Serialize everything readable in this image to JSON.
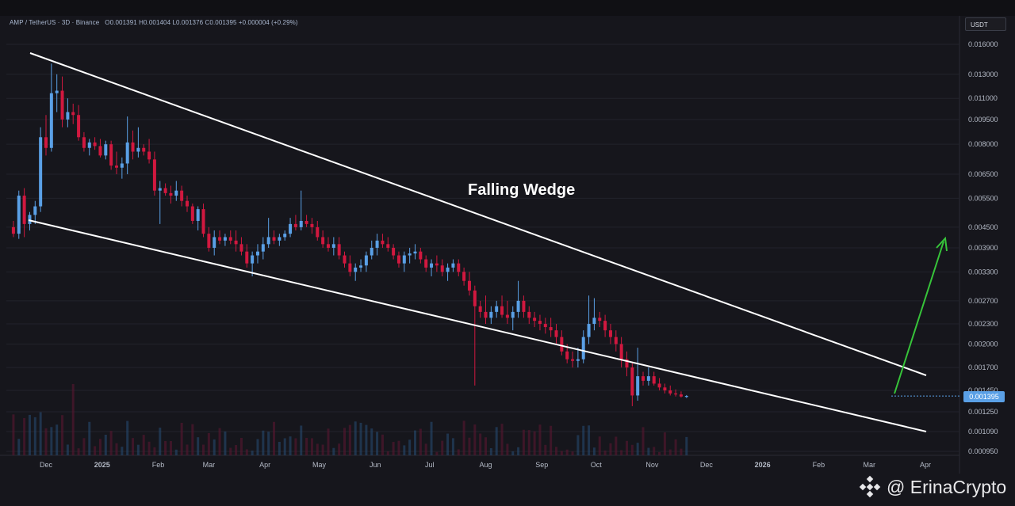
{
  "header": {
    "symbol_line": "AMP / TetherUS · 3D · Binance",
    "ohlc_line": "O0.001391  H0.001404  L0.001376  C0.001395  +0.000004 (+0.29%)"
  },
  "currency_label": "USDT",
  "current_price_label": "0.001395",
  "pattern_label": "Falling Wedge",
  "watermark": "@ ErinaCrypto",
  "colors": {
    "background": "#16161c",
    "up_candle": "#5aa0e6",
    "down_candle": "#d1183f",
    "trendline": "#ffffff",
    "breakout_arrow": "#37c43a",
    "grid": "#22232b",
    "axis_text": "#b4bac6"
  },
  "chart_data": {
    "type": "candlestick",
    "title": "AMP / TetherUS · 3D · Binance",
    "y_scale": "log",
    "y_ticks": [
      "0.016000",
      "0.013000",
      "0.011000",
      "0.009500",
      "0.008000",
      "0.006500",
      "0.005500",
      "0.004500",
      "0.003900",
      "0.003300",
      "0.002700",
      "0.002300",
      "0.002000",
      "0.001700",
      "0.001450",
      "0.001250",
      "0.001090",
      "0.000950"
    ],
    "x_ticks": [
      "Dec",
      "2025",
      "Feb",
      "Mar",
      "Apr",
      "May",
      "Jun",
      "Jul",
      "Aug",
      "Sep",
      "Oct",
      "Nov",
      "Dec",
      "2026",
      "Feb",
      "Mar",
      "Apr"
    ],
    "x_tick_dates": [
      "2024-12-01",
      "2025-01-01",
      "2025-02-01",
      "2025-03-01",
      "2025-04-01",
      "2025-05-01",
      "2025-06-01",
      "2025-07-01",
      "2025-08-01",
      "2025-09-01",
      "2025-10-01",
      "2025-11-01",
      "2025-12-01",
      "2026-01-01",
      "2026-02-01",
      "2026-03-01",
      "2026-04-01"
    ],
    "candle_interval_days": 3,
    "first_candle_date": "2024-11-13",
    "candles": [
      [
        0.0045,
        0.0047,
        0.0042,
        0.0043
      ],
      [
        0.0043,
        0.0058,
        0.00415,
        0.0056
      ],
      [
        0.0056,
        0.0059,
        0.0042,
        0.0046
      ],
      [
        0.0046,
        0.005,
        0.0044,
        0.0049
      ],
      [
        0.0049,
        0.0054,
        0.0046,
        0.0052
      ],
      [
        0.0052,
        0.009,
        0.005,
        0.0084
      ],
      [
        0.0084,
        0.0098,
        0.0074,
        0.0078
      ],
      [
        0.0078,
        0.014,
        0.0076,
        0.0114
      ],
      [
        0.0114,
        0.013,
        0.01,
        0.0116
      ],
      [
        0.0116,
        0.0128,
        0.009,
        0.0095
      ],
      [
        0.0095,
        0.011,
        0.009,
        0.01
      ],
      [
        0.01,
        0.0106,
        0.0092,
        0.0098
      ],
      [
        0.0098,
        0.0105,
        0.0082,
        0.0084
      ],
      [
        0.0084,
        0.0087,
        0.0076,
        0.0078
      ],
      [
        0.0078,
        0.0083,
        0.0074,
        0.0081
      ],
      [
        0.0081,
        0.0084,
        0.0077,
        0.0079
      ],
      [
        0.0079,
        0.0083,
        0.0073,
        0.0074
      ],
      [
        0.0074,
        0.0082,
        0.0072,
        0.008
      ],
      [
        0.008,
        0.0082,
        0.0067,
        0.0069
      ],
      [
        0.0069,
        0.0076,
        0.0065,
        0.0068
      ],
      [
        0.0068,
        0.0073,
        0.0063,
        0.007
      ],
      [
        0.007,
        0.0097,
        0.0065,
        0.0081
      ],
      [
        0.0081,
        0.0088,
        0.0072,
        0.0076
      ],
      [
        0.0076,
        0.009,
        0.0073,
        0.0078
      ],
      [
        0.0078,
        0.008,
        0.0074,
        0.0076
      ],
      [
        0.0076,
        0.0083,
        0.007,
        0.0072
      ],
      [
        0.0072,
        0.0076,
        0.0056,
        0.0058
      ],
      [
        0.0058,
        0.0062,
        0.0046,
        0.0059
      ],
      [
        0.0059,
        0.0061,
        0.0056,
        0.0057
      ],
      [
        0.0057,
        0.006,
        0.0053,
        0.0056
      ],
      [
        0.0056,
        0.0062,
        0.0054,
        0.0058
      ],
      [
        0.0058,
        0.006,
        0.0052,
        0.0054
      ],
      [
        0.0054,
        0.0056,
        0.005,
        0.0052
      ],
      [
        0.0052,
        0.0053,
        0.0046,
        0.0047
      ],
      [
        0.0047,
        0.0052,
        0.0044,
        0.0051
      ],
      [
        0.0051,
        0.0053,
        0.0042,
        0.0043
      ],
      [
        0.0043,
        0.0045,
        0.0038,
        0.0039
      ],
      [
        0.0039,
        0.0044,
        0.0037,
        0.0042
      ],
      [
        0.0042,
        0.0044,
        0.004,
        0.0041
      ],
      [
        0.0041,
        0.0043,
        0.00395,
        0.0042
      ],
      [
        0.0042,
        0.0044,
        0.004,
        0.0041
      ],
      [
        0.0041,
        0.0044,
        0.0038,
        0.004
      ],
      [
        0.004,
        0.0042,
        0.0037,
        0.0038
      ],
      [
        0.0038,
        0.004,
        0.0034,
        0.0035
      ],
      [
        0.0035,
        0.0038,
        0.0032,
        0.0037
      ],
      [
        0.0037,
        0.004,
        0.0035,
        0.0038
      ],
      [
        0.0038,
        0.0042,
        0.0036,
        0.004
      ],
      [
        0.004,
        0.0048,
        0.0039,
        0.0042
      ],
      [
        0.0042,
        0.0044,
        0.004,
        0.0041
      ],
      [
        0.0041,
        0.0043,
        0.00395,
        0.0042
      ],
      [
        0.0042,
        0.0044,
        0.0041,
        0.0043
      ],
      [
        0.0043,
        0.0048,
        0.0042,
        0.0046
      ],
      [
        0.0046,
        0.0049,
        0.0044,
        0.0045
      ],
      [
        0.0045,
        0.0058,
        0.0044,
        0.0047
      ],
      [
        0.0047,
        0.0049,
        0.0045,
        0.0046
      ],
      [
        0.0046,
        0.0048,
        0.0043,
        0.0045
      ],
      [
        0.0045,
        0.0047,
        0.0041,
        0.0042
      ],
      [
        0.0042,
        0.0044,
        0.0039,
        0.004
      ],
      [
        0.004,
        0.0042,
        0.0038,
        0.0039
      ],
      [
        0.0039,
        0.0042,
        0.0037,
        0.004
      ],
      [
        0.004,
        0.0042,
        0.0036,
        0.0037
      ],
      [
        0.0037,
        0.0038,
        0.0034,
        0.0035
      ],
      [
        0.0035,
        0.0037,
        0.0032,
        0.0033
      ],
      [
        0.0033,
        0.0035,
        0.0031,
        0.0034
      ],
      [
        0.0034,
        0.0036,
        0.0033,
        0.00345
      ],
      [
        0.00345,
        0.0038,
        0.0033,
        0.0037
      ],
      [
        0.0037,
        0.0041,
        0.0036,
        0.0039
      ],
      [
        0.0039,
        0.0043,
        0.0037,
        0.0041
      ],
      [
        0.0041,
        0.0043,
        0.0039,
        0.004
      ],
      [
        0.004,
        0.0042,
        0.0038,
        0.0039
      ],
      [
        0.0039,
        0.004,
        0.0036,
        0.0037
      ],
      [
        0.0037,
        0.0038,
        0.0034,
        0.0035
      ],
      [
        0.0035,
        0.0038,
        0.0033,
        0.0037
      ],
      [
        0.0037,
        0.0039,
        0.0035,
        0.00375
      ],
      [
        0.00375,
        0.004,
        0.0036,
        0.0038
      ],
      [
        0.0038,
        0.0039,
        0.0035,
        0.0036
      ],
      [
        0.0036,
        0.0037,
        0.0033,
        0.0034
      ],
      [
        0.0034,
        0.0036,
        0.0032,
        0.0035
      ],
      [
        0.0035,
        0.0037,
        0.0033,
        0.00345
      ],
      [
        0.00345,
        0.0036,
        0.0032,
        0.0033
      ],
      [
        0.0033,
        0.0035,
        0.0031,
        0.0034
      ],
      [
        0.0034,
        0.0036,
        0.0033,
        0.0035
      ],
      [
        0.0035,
        0.0036,
        0.0032,
        0.0033
      ],
      [
        0.0033,
        0.0034,
        0.003,
        0.0031
      ],
      [
        0.0031,
        0.0033,
        0.0028,
        0.0029
      ],
      [
        0.0029,
        0.003,
        0.0015,
        0.0026
      ],
      [
        0.0026,
        0.0027,
        0.0024,
        0.0025
      ],
      [
        0.0025,
        0.0028,
        0.0023,
        0.0024
      ],
      [
        0.0024,
        0.0026,
        0.0023,
        0.0025
      ],
      [
        0.0025,
        0.0027,
        0.0024,
        0.0026
      ],
      [
        0.0026,
        0.0028,
        0.0024,
        0.00245
      ],
      [
        0.00245,
        0.0027,
        0.0023,
        0.0024
      ],
      [
        0.0024,
        0.0026,
        0.0022,
        0.0025
      ],
      [
        0.0025,
        0.0031,
        0.0024,
        0.0027
      ],
      [
        0.0027,
        0.0028,
        0.0024,
        0.0025
      ],
      [
        0.0025,
        0.0026,
        0.0023,
        0.0024
      ],
      [
        0.0024,
        0.0025,
        0.00225,
        0.00235
      ],
      [
        0.00235,
        0.00245,
        0.0022,
        0.0023
      ],
      [
        0.0023,
        0.0024,
        0.00215,
        0.00225
      ],
      [
        0.00225,
        0.0024,
        0.0021,
        0.0022
      ],
      [
        0.0022,
        0.0023,
        0.002,
        0.0021
      ],
      [
        0.0021,
        0.0022,
        0.00185,
        0.0019
      ],
      [
        0.0019,
        0.002,
        0.00175,
        0.0018
      ],
      [
        0.0018,
        0.0019,
        0.0017,
        0.00178
      ],
      [
        0.00178,
        0.00195,
        0.0017,
        0.0018
      ],
      [
        0.0018,
        0.0022,
        0.00175,
        0.0021
      ],
      [
        0.0021,
        0.0028,
        0.002,
        0.0023
      ],
      [
        0.0023,
        0.00275,
        0.0022,
        0.0024
      ],
      [
        0.0024,
        0.0025,
        0.00225,
        0.00235
      ],
      [
        0.00235,
        0.00245,
        0.0021,
        0.0022
      ],
      [
        0.0022,
        0.0023,
        0.002,
        0.0021
      ],
      [
        0.0021,
        0.0022,
        0.0019,
        0.002
      ],
      [
        0.002,
        0.0021,
        0.0017,
        0.0018
      ],
      [
        0.0018,
        0.0019,
        0.0016,
        0.0017
      ],
      [
        0.0017,
        0.00175,
        0.0013,
        0.0014
      ],
      [
        0.0014,
        0.00195,
        0.00135,
        0.0016
      ],
      [
        0.0016,
        0.00165,
        0.0015,
        0.00155
      ],
      [
        0.00155,
        0.0017,
        0.0015,
        0.0016
      ],
      [
        0.0016,
        0.00165,
        0.0015,
        0.00152
      ],
      [
        0.00152,
        0.00158,
        0.00145,
        0.00148
      ],
      [
        0.00148,
        0.00152,
        0.00142,
        0.00145
      ],
      [
        0.00145,
        0.0015,
        0.0014,
        0.00142
      ],
      [
        0.00142,
        0.00146,
        0.00139,
        0.00141
      ],
      [
        0.00141,
        0.00144,
        0.00138,
        0.00139
      ],
      [
        0.001391,
        0.001404,
        0.001376,
        0.001395
      ]
    ],
    "annotations": [
      "Falling Wedge"
    ]
  }
}
